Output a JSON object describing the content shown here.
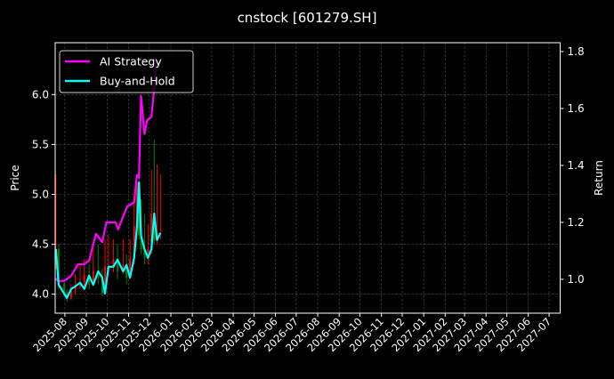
{
  "chart_data": {
    "type": "line",
    "title": "cnstock [601279.SH]",
    "ylabel": "Price",
    "ylabel_right": "Return",
    "xlim": [
      "2025-07-18",
      "2027-07-17"
    ],
    "ylim": [
      3.81,
      6.52
    ],
    "ylim_right": [
      0.881,
      1.831
    ],
    "yticks": [
      "4.0",
      "4.5",
      "5.0",
      "5.5",
      "6.0"
    ],
    "yticks_right": [
      "1.0",
      "1.2",
      "1.4",
      "1.6",
      "1.8"
    ],
    "xticks": [
      "2025-08",
      "2025-09",
      "2025-10",
      "2025-11",
      "2025-12",
      "2026-01",
      "2026-02",
      "2026-03",
      "2026-04",
      "2026-05",
      "2026-06",
      "2026-07",
      "2026-08",
      "2026-09",
      "2026-10",
      "2026-11",
      "2026-12",
      "2027-01",
      "2027-02",
      "2027-03",
      "2027-04",
      "2027-05",
      "2027-06",
      "2027-07"
    ],
    "grid": true,
    "legend_placement": "top-left",
    "background": "#000000",
    "candle_up_color": "#ff0000",
    "candle_down_color": "#008000",
    "candles": [
      [
        "2025-07-19",
        4.3,
        5.2,
        4.25,
        4.45
      ],
      [
        "2025-07-23",
        4.45,
        4.5,
        4.05,
        4.1
      ],
      [
        "2025-07-31",
        4.1,
        4.15,
        3.98,
        4.01
      ],
      [
        "2025-08-04",
        4.01,
        4.05,
        3.92,
        3.96
      ],
      [
        "2025-08-10",
        3.96,
        4.1,
        3.94,
        4.05
      ],
      [
        "2025-08-16",
        4.05,
        4.2,
        4.0,
        4.08
      ],
      [
        "2025-08-23",
        4.08,
        4.3,
        4.05,
        4.12
      ],
      [
        "2025-08-29",
        4.12,
        4.35,
        4.08,
        4.19
      ],
      [
        "2025-09-05",
        4.19,
        4.3,
        4.05,
        4.1
      ],
      [
        "2025-09-11",
        4.1,
        4.45,
        4.08,
        4.23
      ],
      [
        "2025-09-18",
        4.23,
        4.5,
        4.1,
        4.17
      ],
      [
        "2025-09-24",
        4.17,
        4.25,
        3.98,
        4.01
      ],
      [
        "2025-09-28",
        4.01,
        4.55,
        4.0,
        4.28
      ],
      [
        "2025-10-03",
        4.28,
        4.6,
        4.2,
        4.28
      ],
      [
        "2025-10-10",
        4.28,
        4.55,
        4.22,
        4.35
      ],
      [
        "2025-10-16",
        4.35,
        4.5,
        4.15,
        4.23
      ],
      [
        "2025-10-24",
        4.23,
        4.55,
        4.2,
        4.29
      ],
      [
        "2025-10-29",
        4.29,
        4.4,
        4.1,
        4.17
      ],
      [
        "2025-11-03",
        4.17,
        4.55,
        4.15,
        4.36
      ],
      [
        "2025-11-09",
        4.36,
        4.95,
        4.3,
        4.68
      ],
      [
        "2025-11-13",
        4.68,
        5.15,
        4.6,
        5.12
      ],
      [
        "2025-11-16",
        5.12,
        5.2,
        4.55,
        4.59
      ],
      [
        "2025-11-19",
        4.59,
        4.95,
        4.4,
        4.45
      ],
      [
        "2025-11-24",
        4.45,
        4.8,
        4.3,
        4.36
      ],
      [
        "2025-11-29",
        4.36,
        4.7,
        4.3,
        4.45
      ],
      [
        "2025-12-04",
        4.45,
        5.25,
        4.4,
        4.81
      ],
      [
        "2025-12-08",
        4.81,
        5.55,
        4.5,
        4.54
      ],
      [
        "2025-12-12",
        4.54,
        5.3,
        4.5,
        4.61
      ],
      [
        "2025-12-17",
        4.61,
        5.2,
        4.55,
        4.61
      ]
    ],
    "series": [
      {
        "name": "AI Strategy",
        "color": "#ff00ff",
        "axis": "right",
        "x": [
          "2025-07-19",
          "2025-07-22",
          "2025-07-31",
          "2025-08-10",
          "2025-08-20",
          "2025-08-29",
          "2025-09-05",
          "2025-09-15",
          "2025-09-24",
          "2025-09-30",
          "2025-10-13",
          "2025-10-17",
          "2025-10-24",
          "2025-10-30",
          "2025-11-09",
          "2025-11-13",
          "2025-11-16",
          "2025-11-19",
          "2025-11-24",
          "2025-11-28",
          "2025-12-04",
          "2025-12-08",
          "2025-12-11"
        ],
        "y": [
          1.003,
          0.994,
          0.994,
          1.012,
          1.053,
          1.053,
          1.066,
          1.16,
          1.13,
          1.2,
          1.2,
          1.175,
          1.22,
          1.256,
          1.27,
          1.366,
          1.356,
          1.644,
          1.51,
          1.56,
          1.57,
          1.67,
          1.77
        ]
      },
      {
        "name": "Buy-and-Hold",
        "color": "#00ffff",
        "axis": "right",
        "x": [
          "2025-07-19",
          "2025-07-23",
          "2025-07-31",
          "2025-08-04",
          "2025-08-10",
          "2025-08-16",
          "2025-08-23",
          "2025-08-29",
          "2025-09-05",
          "2025-09-11",
          "2025-09-18",
          "2025-09-24",
          "2025-09-28",
          "2025-10-03",
          "2025-10-10",
          "2025-10-16",
          "2025-10-24",
          "2025-10-29",
          "2025-11-03",
          "2025-11-09",
          "2025-11-13",
          "2025-11-16",
          "2025-11-19",
          "2025-11-24",
          "2025-11-29",
          "2025-12-04",
          "2025-12-08",
          "2025-12-12",
          "2025-12-17"
        ],
        "y": [
          1.106,
          0.981,
          0.95,
          0.934,
          0.966,
          0.975,
          0.988,
          0.966,
          1.013,
          0.981,
          1.028,
          1.006,
          0.95,
          1.044,
          1.044,
          1.069,
          1.028,
          1.05,
          1.006,
          1.075,
          1.184,
          1.34,
          1.153,
          1.106,
          1.075,
          1.106,
          1.231,
          1.138,
          1.163
        ]
      }
    ]
  }
}
